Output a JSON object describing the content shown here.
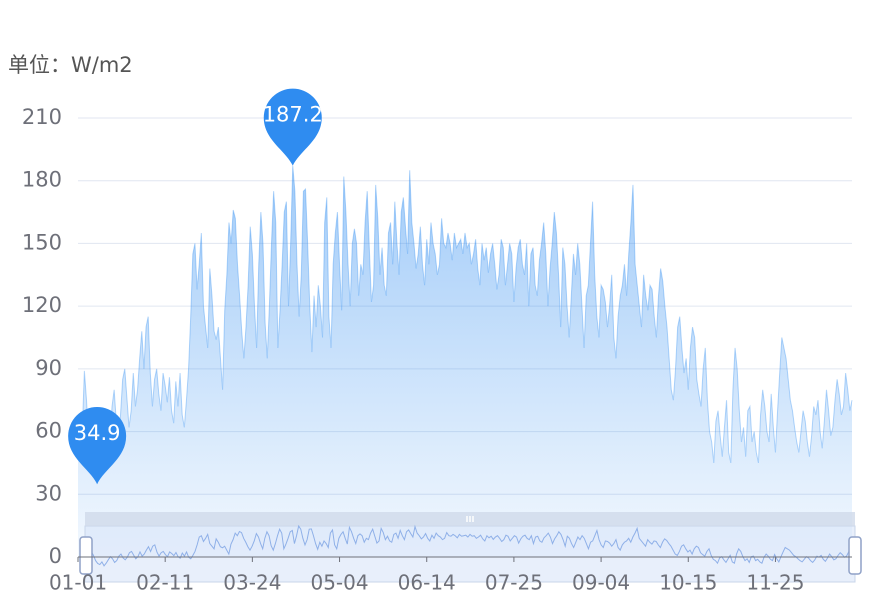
{
  "chart_data": {
    "type": "area",
    "y_axis_label": "单位：W/m2",
    "ylim": [
      0,
      210
    ],
    "yticks": [
      0,
      30,
      60,
      90,
      120,
      150,
      180,
      210
    ],
    "grid": true,
    "categories": [
      "01-01",
      null,
      null,
      null,
      null,
      null,
      null,
      null,
      null,
      null,
      null,
      null,
      null,
      null,
      null,
      null,
      null,
      null,
      null,
      null,
      null,
      null,
      null,
      null,
      null,
      null,
      null,
      null,
      null,
      null,
      null,
      null,
      null,
      null,
      null,
      null,
      null,
      null,
      null,
      null,
      null,
      "02-11",
      null,
      null,
      null,
      null,
      null,
      null,
      null,
      null,
      null,
      null,
      null,
      null,
      null,
      null,
      null,
      null,
      null,
      null,
      null,
      null,
      null,
      null,
      null,
      null,
      null,
      null,
      null,
      null,
      null,
      null,
      null,
      null,
      null,
      null,
      null,
      null,
      null,
      null,
      null,
      null,
      "03-24",
      null,
      null,
      null,
      null,
      null,
      null,
      null,
      null,
      null,
      null,
      null,
      null,
      null,
      null,
      null,
      null,
      null,
      null,
      null,
      null,
      null,
      null,
      null,
      null,
      null,
      null,
      null,
      null,
      null,
      null,
      null,
      null,
      null,
      null,
      null,
      null,
      null,
      null,
      null,
      null,
      "05-04",
      null,
      null,
      null,
      null,
      null,
      null,
      null,
      null,
      null,
      null,
      null,
      null,
      null,
      null,
      null,
      null,
      null,
      null,
      null,
      null,
      null,
      null,
      null,
      null,
      null,
      null,
      null,
      null,
      null,
      null,
      null,
      null,
      null,
      null,
      null,
      null,
      null,
      null,
      null,
      null,
      "06-14",
      null,
      null,
      null,
      null,
      null,
      null,
      null,
      null,
      null,
      null,
      null,
      null,
      null,
      null,
      null,
      null,
      null,
      null,
      null,
      null,
      null,
      null,
      null,
      null,
      null,
      null,
      null,
      null,
      null,
      null,
      null,
      null,
      null,
      null,
      null,
      null,
      null,
      null,
      null,
      null,
      "07-25",
      null,
      null,
      null,
      null,
      null,
      null,
      null,
      null,
      null,
      null,
      null,
      null,
      null,
      null,
      null,
      null,
      null,
      null,
      null,
      null,
      null,
      null,
      null,
      null,
      null,
      null,
      null,
      null,
      null,
      null,
      null,
      null,
      null,
      null,
      null,
      null,
      null,
      null,
      null,
      null,
      "09-04",
      null,
      null,
      null,
      null,
      null,
      null,
      null,
      null,
      null,
      null,
      null,
      null,
      null,
      null,
      null,
      null,
      null,
      null,
      null,
      null,
      null,
      null,
      null,
      null,
      null,
      null,
      null,
      null,
      null,
      null,
      null,
      null,
      null,
      null,
      null,
      null,
      null,
      null,
      null,
      null,
      "10-15",
      null,
      null,
      null,
      null,
      null,
      null,
      null,
      null,
      null,
      null,
      null,
      null,
      null,
      null,
      null,
      null,
      null,
      null,
      null,
      null,
      null,
      null,
      null,
      null,
      null,
      null,
      null,
      null,
      null,
      null,
      null,
      null,
      null,
      null,
      null,
      null,
      null,
      null,
      null,
      null,
      "11-25",
      null,
      null,
      null,
      null,
      null,
      null,
      null,
      null,
      null,
      null,
      null,
      null,
      null,
      null,
      null,
      null,
      null,
      null,
      null,
      null,
      null,
      null,
      null,
      null,
      null,
      null,
      null,
      null,
      null,
      null,
      null,
      null,
      null,
      null,
      null,
      null
    ],
    "series": [
      {
        "color": "#2f8cf0",
        "values": [
          52,
          48,
          60,
          89,
          75,
          55,
          44,
          40,
          50,
          34.9,
          45,
          58,
          70,
          62,
          48,
          55,
          72,
          80,
          65,
          58,
          68,
          85,
          90,
          76,
          62,
          70,
          88,
          72,
          80,
          95,
          108,
          90,
          110,
          115,
          88,
          72,
          85,
          90,
          78,
          70,
          88,
          82,
          74,
          86,
          70,
          64,
          84,
          72,
          88,
          68,
          62,
          75,
          90,
          115,
          145,
          150,
          128,
          140,
          155,
          120,
          110,
          100,
          138,
          125,
          108,
          104,
          110,
          95,
          80,
          118,
          135,
          160,
          150,
          166,
          162,
          140,
          125,
          108,
          95,
          110,
          130,
          158,
          145,
          120,
          100,
          140,
          165,
          150,
          112,
          95,
          120,
          150,
          175,
          160,
          100,
          118,
          140,
          165,
          170,
          120,
          150,
          187.2,
          175,
          140,
          115,
          135,
          175,
          176,
          150,
          120,
          98,
          125,
          110,
          130,
          120,
          105,
          160,
          172,
          115,
          100,
          140,
          155,
          165,
          140,
          118,
          182,
          165,
          140,
          120,
          150,
          157,
          150,
          125,
          140,
          135,
          160,
          175,
          148,
          122,
          130,
          178,
          162,
          135,
          148,
          130,
          125,
          155,
          160,
          140,
          170,
          150,
          135,
          165,
          172,
          158,
          145,
          185,
          160,
          150,
          138,
          145,
          158,
          140,
          130,
          152,
          140,
          160,
          150,
          145,
          135,
          140,
          162,
          150,
          148,
          155,
          150,
          142,
          155,
          148,
          150,
          152,
          145,
          155,
          148,
          150,
          140,
          145,
          152,
          138,
          130,
          150,
          142,
          148,
          136,
          145,
          150,
          140,
          128,
          135,
          152,
          148,
          130,
          140,
          150,
          145,
          122,
          138,
          148,
          152,
          140,
          135,
          150,
          120,
          145,
          148,
          130,
          125,
          142,
          150,
          160,
          145,
          120,
          138,
          150,
          165,
          155,
          135,
          110,
          148,
          140,
          120,
          105,
          125,
          145,
          135,
          150,
          140,
          120,
          100,
          125,
          130,
          150,
          170,
          135,
          115,
          105,
          130,
          128,
          122,
          110,
          120,
          135,
          105,
          95,
          115,
          125,
          130,
          140,
          125,
          145,
          160,
          178,
          140,
          130,
          120,
          110,
          135,
          125,
          118,
          130,
          128,
          115,
          105,
          125,
          138,
          132,
          120,
          110,
          95,
          80,
          75,
          90,
          110,
          115,
          100,
          88,
          95,
          80,
          100,
          110,
          105,
          85,
          78,
          72,
          90,
          100,
          75,
          60,
          55,
          45,
          65,
          70,
          58,
          48,
          62,
          75,
          50,
          45,
          80,
          100,
          90,
          70,
          55,
          62,
          48,
          70,
          72,
          55,
          60,
          50,
          45,
          68,
          80,
          72,
          60,
          55,
          78,
          62,
          50,
          70,
          88,
          105,
          100,
          95,
          85,
          75,
          70,
          62,
          55,
          50,
          60,
          70,
          65,
          55,
          48,
          58,
          72,
          68,
          75,
          60,
          52,
          65,
          80,
          70,
          58,
          62,
          75,
          85,
          78,
          68,
          72,
          88,
          80,
          70,
          75
        ]
      }
    ]
  }
}
